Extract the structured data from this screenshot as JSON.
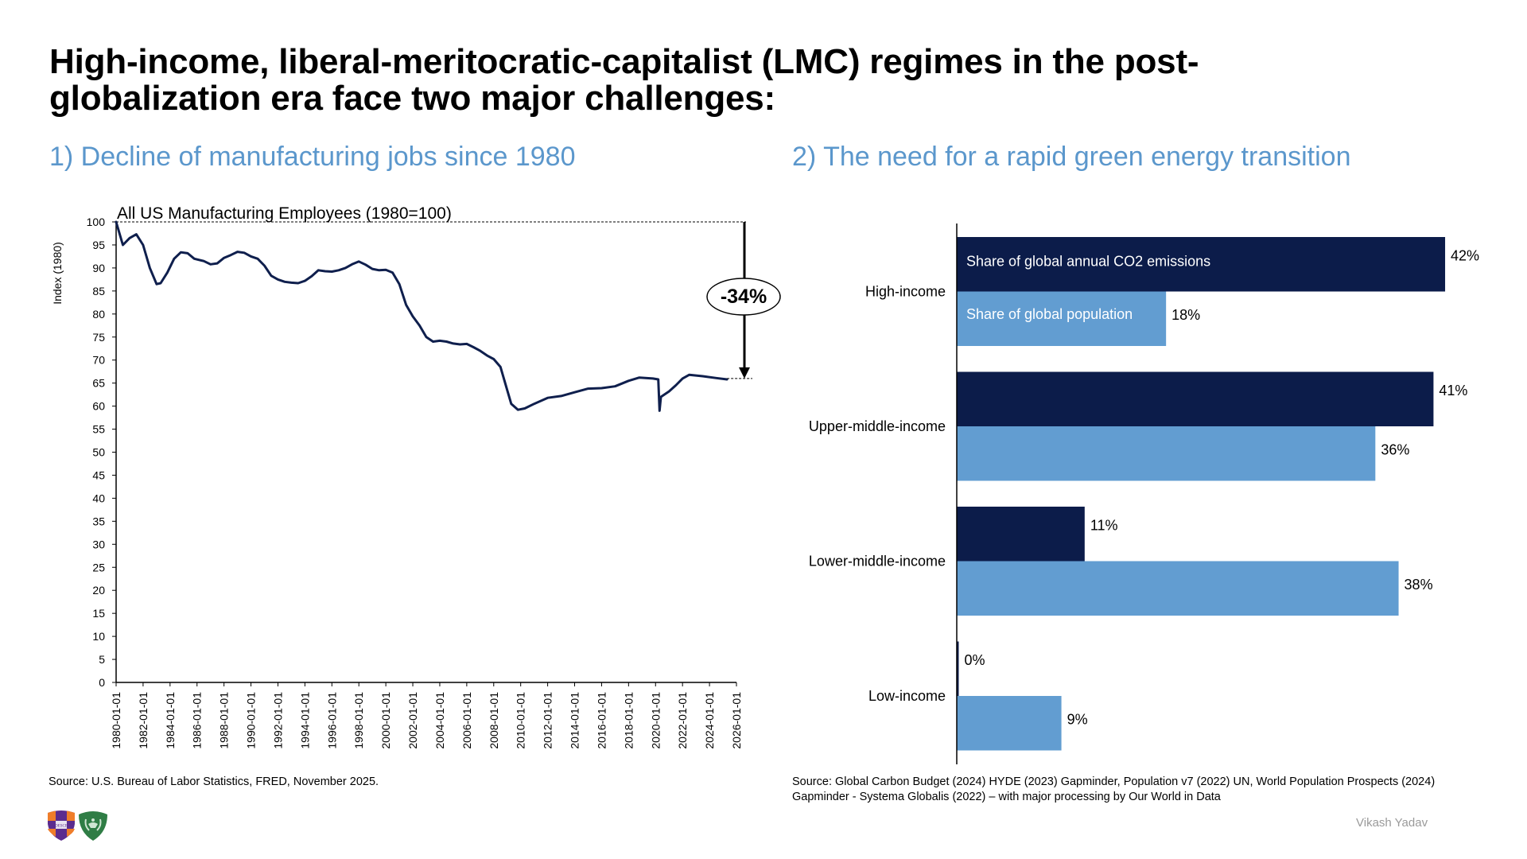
{
  "page": {
    "title": "High-income, liberal-meritocratic-capitalist (LMC) regimes in the post-globalization era face two major challenges:",
    "author": "Vikash Yadav",
    "logos": [
      "university-shield-logo",
      "green-laurel-shield-logo"
    ],
    "logo_text": "DESCE"
  },
  "left_panel": {
    "subtitle": "1) Decline of manufacturing jobs since 1980",
    "source": "Source: U.S. Bureau of Labor Statistics, FRED, November 2025.",
    "annotation": "-34%"
  },
  "right_panel": {
    "subtitle": "2) The need for a rapid green energy transition",
    "source_line1": "Source: Global Carbon Budget (2024) HYDE (2023) Gapminder, Population v7 (2022) UN, World Population Prospects (2024)",
    "source_line2": "Gapminder - Systema Globalis (2022) – with major processing by Our World in Data"
  },
  "colors": {
    "subtitle": "#5b97cc",
    "line": "#0f1f4d",
    "co2_bar": "#0c1c4a",
    "population_bar": "#629dd1",
    "author": "#9a9a9a"
  },
  "chart_data": [
    {
      "type": "line",
      "title": "All US Manufacturing Employees (1980=100)",
      "xlabel": "",
      "ylabel": "Index (1980)",
      "ylim": [
        0,
        100
      ],
      "yticks": [
        0,
        5,
        10,
        15,
        20,
        25,
        30,
        35,
        40,
        45,
        50,
        55,
        60,
        65,
        70,
        75,
        80,
        85,
        90,
        95,
        100
      ],
      "xlim": [
        1980,
        2026
      ],
      "xtick_labels": [
        "1980-01-01",
        "1982-01-01",
        "1984-01-01",
        "1986-01-01",
        "1988-01-01",
        "1990-01-01",
        "1992-01-01",
        "1994-01-01",
        "1996-01-01",
        "1998-01-01",
        "2000-01-01",
        "2002-01-01",
        "2004-01-01",
        "2006-01-01",
        "2008-01-01",
        "2010-01-01",
        "2012-01-01",
        "2014-01-01",
        "2016-01-01",
        "2018-01-01",
        "2020-01-01",
        "2022-01-01",
        "2024-01-01",
        "2026-01-01"
      ],
      "grid": false,
      "reference_line": {
        "y": 100,
        "style": "dashed"
      },
      "annotation": {
        "text": "-34%",
        "from": 100,
        "to": 66,
        "x": 2026
      },
      "series": [
        {
          "name": "All US Manufacturing Employees",
          "x": [
            1980.0,
            1980.5,
            1981.0,
            1981.5,
            1982.0,
            1982.5,
            1983.0,
            1983.3,
            1983.8,
            1984.3,
            1984.8,
            1985.3,
            1985.8,
            1986.5,
            1987.0,
            1987.5,
            1988.0,
            1988.5,
            1989.0,
            1989.5,
            1990.0,
            1990.5,
            1991.0,
            1991.5,
            1992.0,
            1992.5,
            1993.0,
            1993.5,
            1994.0,
            1994.5,
            1995.0,
            1995.5,
            1996.0,
            1996.5,
            1997.0,
            1997.5,
            1998.0,
            1998.5,
            1999.0,
            1999.5,
            2000.0,
            2000.5,
            2001.0,
            2001.5,
            2002.0,
            2002.5,
            2003.0,
            2003.5,
            2004.0,
            2004.5,
            2005.0,
            2005.5,
            2006.0,
            2006.5,
            2007.0,
            2007.5,
            2008.0,
            2008.5,
            2009.0,
            2009.3,
            2009.8,
            2010.3,
            2011.0,
            2012.0,
            2013.0,
            2014.0,
            2015.0,
            2016.0,
            2017.0,
            2018.0,
            2018.8,
            2019.8,
            2020.2,
            2020.3,
            2020.4,
            2021.0,
            2021.5,
            2022.0,
            2022.5,
            2023.5,
            2024.5,
            2025.3
          ],
          "y": [
            100,
            95,
            96.5,
            97.3,
            95,
            90,
            86.5,
            86.7,
            89,
            92,
            93.4,
            93.2,
            92,
            91.5,
            90.8,
            91,
            92.2,
            92.8,
            93.5,
            93.3,
            92.5,
            92,
            90.5,
            88.3,
            87.5,
            87,
            86.8,
            86.7,
            87.2,
            88.2,
            89.5,
            89.3,
            89.2,
            89.5,
            90,
            90.8,
            91.4,
            90.7,
            89.8,
            89.5,
            89.6,
            89,
            86.5,
            82,
            79.5,
            77.5,
            75,
            74,
            74.2,
            74,
            73.6,
            73.4,
            73.5,
            72.8,
            72,
            71,
            70.2,
            68.5,
            63.5,
            60.5,
            59.2,
            59.5,
            60.5,
            61.8,
            62.2,
            63,
            63.8,
            63.9,
            64.3,
            65.5,
            66.2,
            66,
            65.8,
            59,
            62,
            63.2,
            64.5,
            66,
            66.8,
            66.5,
            66.1,
            65.8
          ]
        }
      ]
    },
    {
      "type": "bar",
      "orientation": "horizontal",
      "title": "",
      "xlabel": "",
      "ylabel": "",
      "xlim": [
        0,
        42
      ],
      "categories": [
        "High-income",
        "Upper-middle-income",
        "Lower-middle-income",
        "Low-income"
      ],
      "series": [
        {
          "name": "Share of global annual CO2 emissions",
          "values": [
            42,
            41,
            11,
            0
          ],
          "labels": [
            "42%",
            "41%",
            "11%",
            "0%"
          ]
        },
        {
          "name": "Share of global population",
          "values": [
            18,
            36,
            38,
            9
          ],
          "labels": [
            "18%",
            "36%",
            "38%",
            "9%"
          ]
        }
      ],
      "legend": "inline-in-first-group",
      "grid": false
    }
  ]
}
